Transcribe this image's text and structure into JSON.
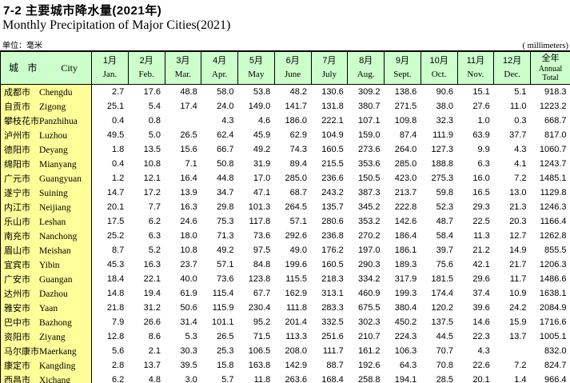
{
  "page": {
    "title_cn": "7-2  主要城市降水量(2021年)",
    "title_en": "Monthly Precipitation of Major Cities(2021)",
    "unit_cn": "单位：毫米",
    "unit_en": "( millimeters)"
  },
  "table": {
    "corner": {
      "cn": "城  市",
      "en": "City"
    },
    "month_columns": [
      {
        "cn": "1月",
        "en": "Jan."
      },
      {
        "cn": "2月",
        "en": "Feb."
      },
      {
        "cn": "3月",
        "en": "Mar."
      },
      {
        "cn": "4月",
        "en": "Apr."
      },
      {
        "cn": "5月",
        "en": "May"
      },
      {
        "cn": "6月",
        "en": "June"
      },
      {
        "cn": "7月",
        "en": "July"
      },
      {
        "cn": "8月",
        "en": "Aug."
      },
      {
        "cn": "9月",
        "en": "Sept."
      },
      {
        "cn": "10月",
        "en": "Oct."
      },
      {
        "cn": "11月",
        "en": "Nov."
      },
      {
        "cn": "12月",
        "en": "Dec."
      },
      {
        "cn": "全年",
        "en": "Annual Total"
      }
    ],
    "rows": [
      {
        "cn": "成都市",
        "en": "Chengdu",
        "values": [
          "2.7",
          "17.6",
          "48.8",
          "58.0",
          "53.8",
          "48.2",
          "130.6",
          "309.2",
          "138.6",
          "90.6",
          "15.1",
          "5.1",
          "918.3"
        ]
      },
      {
        "cn": "自贡市",
        "en": "Zigong",
        "values": [
          "25.1",
          "5.4",
          "17.4",
          "24.0",
          "149.0",
          "141.7",
          "131.8",
          "380.7",
          "271.5",
          "38.0",
          "27.6",
          "11.0",
          "1223.2"
        ]
      },
      {
        "cn": "攀枝花市",
        "en": "Panzhihua",
        "values": [
          "0.4",
          "0.8",
          "",
          "4.3",
          "4.6",
          "186.0",
          "222.1",
          "107.1",
          "109.8",
          "32.3",
          "1.0",
          "0.3",
          "668.7"
        ]
      },
      {
        "cn": "泸州市",
        "en": "Luzhou",
        "values": [
          "49.5",
          "5.0",
          "26.5",
          "62.4",
          "45.9",
          "62.9",
          "104.9",
          "159.0",
          "87.4",
          "111.9",
          "63.9",
          "37.7",
          "817.0"
        ]
      },
      {
        "cn": "德阳市",
        "en": "Deyang",
        "values": [
          "1.8",
          "13.5",
          "15.6",
          "66.7",
          "49.2",
          "74.3",
          "160.5",
          "273.6",
          "264.0",
          "127.3",
          "9.9",
          "4.3",
          "1060.7"
        ]
      },
      {
        "cn": "绵阳市",
        "en": "Mianyang",
        "values": [
          "0.4",
          "10.8",
          "7.1",
          "50.8",
          "31.9",
          "89.4",
          "215.5",
          "353.6",
          "285.0",
          "188.8",
          "6.3",
          "4.1",
          "1243.7"
        ]
      },
      {
        "cn": "广元市",
        "en": "Guangyuan",
        "values": [
          "1.2",
          "12.1",
          "16.4",
          "44.8",
          "17.0",
          "285.0",
          "236.6",
          "150.5",
          "423.0",
          "275.3",
          "16.0",
          "7.2",
          "1485.1"
        ]
      },
      {
        "cn": "遂宁市",
        "en": "Suining",
        "values": [
          "14.7",
          "17.2",
          "13.9",
          "34.7",
          "47.1",
          "68.7",
          "243.2",
          "387.3",
          "213.7",
          "59.8",
          "16.5",
          "13.0",
          "1129.8"
        ]
      },
      {
        "cn": "内江市",
        "en": "Neijiang",
        "values": [
          "20.1",
          "7.7",
          "16.3",
          "29.8",
          "101.3",
          "264.5",
          "135.7",
          "345.2",
          "222.8",
          "52.3",
          "29.3",
          "21.3",
          "1246.3"
        ]
      },
      {
        "cn": "乐山市",
        "en": "Leshan",
        "values": [
          "17.5",
          "6.2",
          "24.6",
          "75.3",
          "117.8",
          "57.1",
          "280.6",
          "353.2",
          "142.6",
          "48.7",
          "22.5",
          "20.3",
          "1166.4"
        ]
      },
      {
        "cn": "南充市",
        "en": "Nanchong",
        "values": [
          "25.2",
          "6.3",
          "18.0",
          "71.3",
          "73.6",
          "292.6",
          "236.8",
          "270.2",
          "186.4",
          "58.4",
          "11.3",
          "12.7",
          "1262.8"
        ]
      },
      {
        "cn": "眉山市",
        "en": "Meishan",
        "values": [
          "8.7",
          "5.2",
          "10.8",
          "49.2",
          "97.5",
          "49.0",
          "176.2",
          "197.0",
          "186.1",
          "39.7",
          "21.2",
          "14.9",
          "855.5"
        ]
      },
      {
        "cn": "宜宾市",
        "en": "Yibin",
        "values": [
          "45.3",
          "16.3",
          "23.7",
          "57.1",
          "84.8",
          "199.6",
          "160.5",
          "290.3",
          "189.3",
          "75.6",
          "42.1",
          "21.7",
          "1206.3"
        ]
      },
      {
        "cn": "广安市",
        "en": "Guangan",
        "values": [
          "18.4",
          "22.1",
          "40.0",
          "73.6",
          "123.8",
          "115.5",
          "218.3",
          "334.2",
          "317.9",
          "181.5",
          "29.6",
          "11.7",
          "1486.6"
        ]
      },
      {
        "cn": "达州市",
        "en": "Dazhou",
        "values": [
          "14.8",
          "19.4",
          "61.9",
          "115.4",
          "67.7",
          "162.9",
          "313.1",
          "460.9",
          "199.3",
          "174.4",
          "37.4",
          "10.9",
          "1638.1"
        ]
      },
      {
        "cn": "雅安市",
        "en": "Yaan",
        "values": [
          "21.8",
          "31.2",
          "50.6",
          "115.9",
          "230.4",
          "111.8",
          "283.3",
          "675.5",
          "380.4",
          "120.2",
          "39.6",
          "24.2",
          "2084.9"
        ]
      },
      {
        "cn": "巴中市",
        "en": "Bazhong",
        "values": [
          "7.9",
          "26.6",
          "31.4",
          "101.1",
          "95.2",
          "201.4",
          "332.5",
          "302.3",
          "450.2",
          "137.5",
          "14.6",
          "15.9",
          "1716.6"
        ]
      },
      {
        "cn": "资阳市",
        "en": "Ziyang",
        "values": [
          "12.8",
          "8.6",
          "5.3",
          "26.5",
          "71.5",
          "113.3",
          "251.6",
          "210.7",
          "224.3",
          "44.5",
          "22.3",
          "13.7",
          "1005.1"
        ]
      },
      {
        "cn": "马尔康市",
        "en": "Maerkang",
        "values": [
          "5.6",
          "2.1",
          "30.3",
          "25.3",
          "106.5",
          "208.0",
          "111.7",
          "161.2",
          "106.3",
          "70.7",
          "4.3",
          "",
          "832.0"
        ]
      },
      {
        "cn": "康定市",
        "en": "Kangding",
        "values": [
          "2.8",
          "13.7",
          "39.5",
          "15.8",
          "163.8",
          "142.9",
          "88.7",
          "192.6",
          "64.3",
          "70.8",
          "22.6",
          "7.2",
          "824.7"
        ]
      },
      {
        "cn": "西昌市",
        "en": "Xichang",
        "values": [
          "6.2",
          "4.8",
          "3.0",
          "5.7",
          "11.8",
          "263.6",
          "168.4",
          "258.8",
          "194.1",
          "28.5",
          "20.1",
          "1.4",
          "966.4"
        ]
      }
    ]
  },
  "layout_colors": {
    "header_bg": "#ccffcc",
    "city_column_bg": "#ffff99",
    "border": "#000000"
  }
}
